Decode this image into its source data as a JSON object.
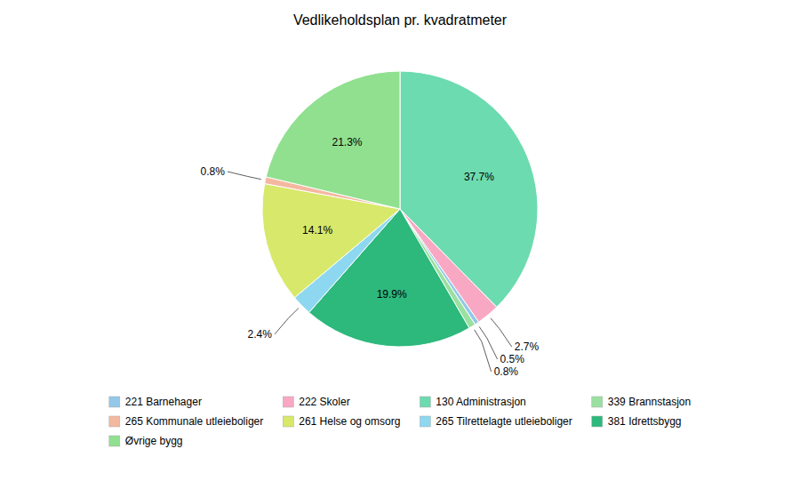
{
  "chart_data": {
    "type": "pie",
    "title": "Vedlikeholdsplan pr. kvadratmeter",
    "categories": [
      "130 Administrasjon",
      "222 Skoler",
      "221 Barnehager",
      "339 Brannstasjon",
      "381 Idrettsbygg",
      "265 Tilrettelagte utleieboliger",
      "261 Helse og omsorg",
      "265 Kommunale utleieboliger",
      "Øvrige bygg"
    ],
    "values": [
      37.7,
      2.7,
      0.5,
      0.8,
      19.9,
      2.4,
      14.1,
      0.8,
      21.3
    ],
    "value_labels": [
      "37.7%",
      "2.7%",
      "0.5%",
      "0.8%",
      "19.9%",
      "2.4%",
      "14.1%",
      "0.8%",
      "21.3%"
    ],
    "colors": [
      "#6DDBB0",
      "#F9A8C4",
      "#93C8E8",
      "#9AE0A0",
      "#2DB87C",
      "#8DD8F0",
      "#D8E86A",
      "#F4B8A0",
      "#90E090"
    ],
    "data_labels": true,
    "legend": "bottom",
    "legend_labels": [
      "221 Barnehager",
      "222 Skoler",
      "130 Administrasjon",
      "339 Brannstasjon",
      "265 Kommunale utleieboliger",
      "261 Helse og omsorg",
      "265 Tilrettelagte utleieboliger",
      "381 Idrettsbygg",
      "Øvrige bygg"
    ]
  }
}
